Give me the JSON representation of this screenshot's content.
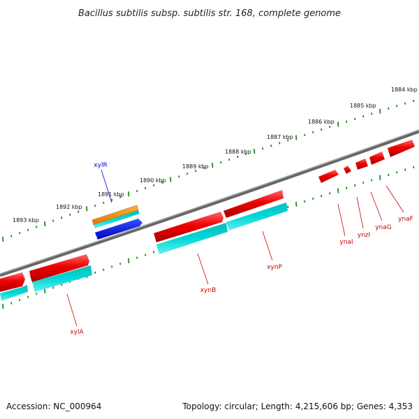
{
  "title": "Bacillus subtilis subsp. subtilis str. 168, complete genome",
  "footer": {
    "accession": "Accession: NC_000964",
    "summary": "Topology: circular; Length: 4,215,606 bp; Genes: 4,353"
  },
  "colors": {
    "forward_gene": "#ee0000",
    "cds": "#00c8c8",
    "regulatory": "#ee8800",
    "other_feature": "#0000dd",
    "ticks": "#228822",
    "backbone": "#888888",
    "label_blue": "#0000cc",
    "label_red": "#cc0000"
  },
  "scale_labels": [
    {
      "text": "1893 kbp"
    },
    {
      "text": "1892 kbp"
    },
    {
      "text": "1891 kbp"
    },
    {
      "text": "1890 kbp"
    },
    {
      "text": "1889 kbp"
    },
    {
      "text": "1888 kbp"
    },
    {
      "text": "1887 kbp"
    },
    {
      "text": "1886 kbp"
    },
    {
      "text": "1885 kbp"
    },
    {
      "text": "1884 kbp"
    }
  ],
  "genes": [
    {
      "name": "xylR",
      "label_color": "blue"
    },
    {
      "name": "xylA",
      "label_color": "red"
    },
    {
      "name": "xynB",
      "label_color": "red"
    },
    {
      "name": "xynP",
      "label_color": "red"
    },
    {
      "name": "ynaI",
      "label_color": "red"
    },
    {
      "name": "ynzI",
      "label_color": "red"
    },
    {
      "name": "ynaG",
      "label_color": "red"
    },
    {
      "name": "ynaF",
      "label_color": "red"
    }
  ]
}
